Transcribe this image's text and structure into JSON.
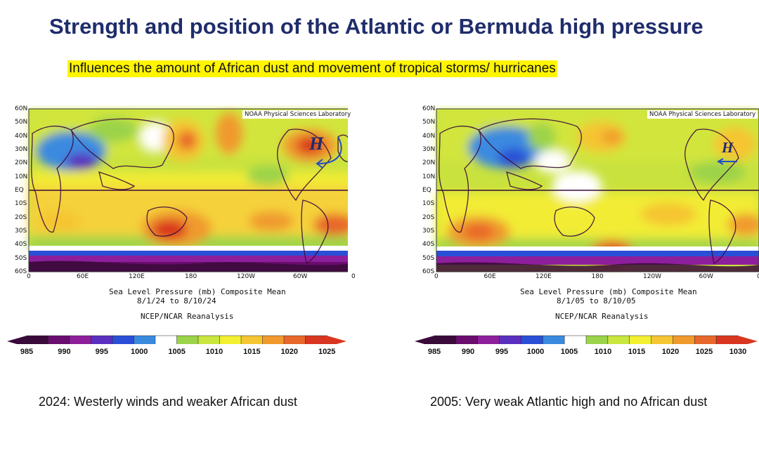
{
  "title": "Strength and position of the Atlantic or Bermuda high pressure",
  "subtitle": "Influences the amount of African dust and movement of tropical storms/ hurricanes",
  "lat_labels": [
    "60N",
    "50N",
    "40N",
    "30N",
    "20N",
    "10N",
    "EQ",
    "10S",
    "20S",
    "30S",
    "40S",
    "50S",
    "60S"
  ],
  "lon_labels": [
    "0",
    "60E",
    "120E",
    "180",
    "120W",
    "60W",
    "0"
  ],
  "panels": [
    {
      "credit": "NOAA Physical Sciences Laboratory",
      "variable": "Sea Level Pressure (mb) Composite Mean",
      "dates": "8/1/24  to 8/10/24",
      "source": "NCEP/NCAR Reanalysis",
      "high_label": "H",
      "colorbar_labels": [
        "985",
        "990",
        "995",
        "1000",
        "1005",
        "1010",
        "1015",
        "1020",
        "1025"
      ],
      "caption": "2024: Westerly winds and weaker African dust"
    },
    {
      "credit": "NOAA Physical Sciences Laboratory",
      "variable": "Sea Level Pressure (mb) Composite Mean",
      "dates": "8/1/05  to 8/10/05",
      "source": "NCEP/NCAR Reanalysis",
      "high_label": "H",
      "colorbar_labels": [
        "985",
        "990",
        "995",
        "1000",
        "1005",
        "1010",
        "1015",
        "1020",
        "1025",
        "1030"
      ],
      "caption": "2005: Very weak Atlantic high and no African dust"
    }
  ],
  "colors": {
    "title": "#1f2d6b",
    "highlight": "#fff500",
    "arrow": "#1e4fc8",
    "colorbar": [
      "#3a0a3a",
      "#6a0d6e",
      "#8e1f9c",
      "#5a2fc0",
      "#2a4fd6",
      "#3a8ae0",
      "#ffffff",
      "#9bd34a",
      "#c8e63e",
      "#f2f030",
      "#f5c533",
      "#f09a2e",
      "#e8672a",
      "#d9361f"
    ]
  }
}
